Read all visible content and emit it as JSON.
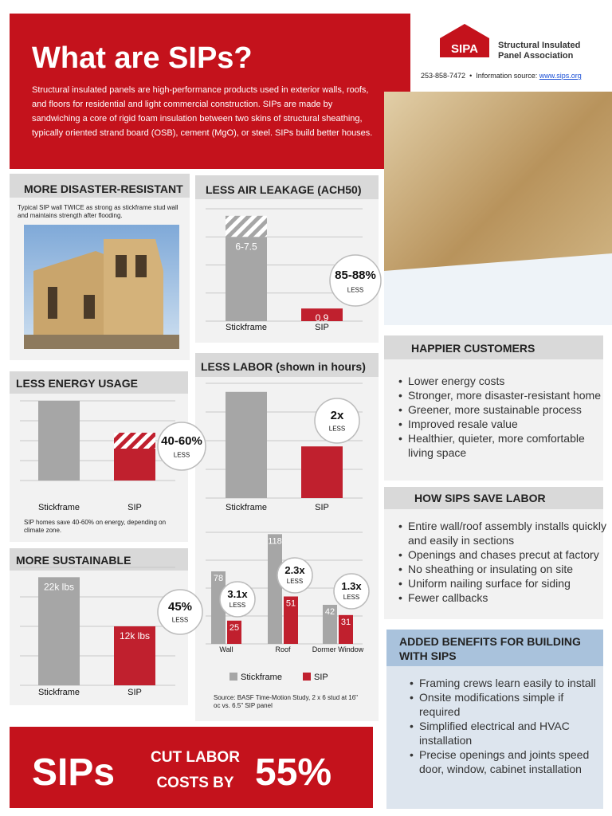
{
  "header": {
    "title": "What are SIPs?",
    "intro": "Structural insulated panels are high-performance products used in exterior walls, roofs, and floors for residential and light commercial construction. SIPs are made by sandwiching a core of rigid foam insulation between two skins of structural sheathing, typically oriented strand board (OSB), cement (MgO), or steel. SIPs build better houses."
  },
  "logo": {
    "mark": "SIPA",
    "name": "Structural Insulated Panel Association",
    "phone": "253-858-7472",
    "source_label": "Information source:",
    "source_link": "www.sips.org"
  },
  "disaster": {
    "title": "MORE DISASTER-RESISTANT",
    "text": "Typical SIP wall TWICE as strong as stickframe stud wall and maintains strength after flooding."
  },
  "customers": {
    "title": "HAPPIER CUSTOMERS",
    "items": [
      "Lower energy costs",
      "Stronger, more disaster-resistant home",
      "Greener, more sustainable process",
      "Improved resale value",
      "Healthier, quieter, more comfortable living space"
    ]
  },
  "labor": {
    "title": "HOW SIPS SAVE LABOR",
    "items": [
      "Entire wall/roof assembly installs quickly and easily in sections",
      "Openings and chases precut at factory",
      "No sheathing or insulating on site",
      "Uniform nailing surface for siding",
      "Fewer callbacks"
    ]
  },
  "benefits": {
    "title": "ADDED BENEFITS FOR BUILDING WITH SIPS",
    "items": [
      "Framing crews learn easily to install",
      "Onsite modifications simple if required",
      "Simplified electrical and HVAC installation",
      "Precise openings and joints speed door, window, cabinet installation"
    ]
  },
  "banner": {
    "brand": "SIPs",
    "line1": "CUT LABOR",
    "line2": "COSTS BY",
    "value": "55%"
  },
  "chart_data": [
    {
      "type": "bar",
      "title": "LESS AIR LEAKAGE (ACH50)",
      "categories": [
        "Stickframe",
        "SIP"
      ],
      "values": [
        6,
        0.9
      ],
      "range_high": [
        7.5,
        null
      ],
      "value_labels": [
        "6-7.5",
        "0.9"
      ],
      "colors": [
        "#a6a6a6",
        "#c0202e"
      ],
      "ylim": [
        0,
        8
      ],
      "yticks": [
        0,
        2,
        4,
        6,
        8
      ],
      "grid": true,
      "badge": {
        "value": "85-88%",
        "label": "LESS"
      }
    },
    {
      "type": "bar",
      "title": "LESS ENERGY USAGE",
      "categories": [
        "Stickframe",
        "SIP"
      ],
      "values": [
        100,
        40
      ],
      "range_high": [
        null,
        60
      ],
      "colors": [
        "#a6a6a6",
        "#c0202e"
      ],
      "ylim": [
        0,
        100
      ],
      "yticks": [
        0,
        25,
        50,
        75,
        100
      ],
      "grid": true,
      "badge": {
        "value": "40-60%",
        "label": "LESS"
      },
      "note": "SIP homes save 40-60% on energy, depending on climate zone."
    },
    {
      "type": "bar",
      "title": "LESS LABOR (shown in hours)",
      "categories": [
        "Stickframe",
        "SIP"
      ],
      "values": [
        259,
        126
      ],
      "colors": [
        "#a6a6a6",
        "#c0202e"
      ],
      "ylim": [
        0,
        280
      ],
      "yticks": [
        0,
        70,
        140,
        210,
        280
      ],
      "grid": true,
      "badge": {
        "value": "2x",
        "label": "LESS"
      }
    },
    {
      "type": "grouped-bar",
      "categories": [
        "Wall",
        "Roof",
        "Dormer Window"
      ],
      "series": [
        {
          "name": "Stickframe",
          "color": "#a6a6a6",
          "values": [
            78,
            118,
            42
          ]
        },
        {
          "name": "SIP",
          "color": "#c0202e",
          "values": [
            25,
            51,
            31
          ]
        }
      ],
      "ylim": [
        0,
        120
      ],
      "yticks": [
        0,
        30,
        60,
        90,
        120
      ],
      "grid": true,
      "badges": [
        {
          "value": "3.1x",
          "label": "LESS"
        },
        {
          "value": "2.3x",
          "label": "LESS"
        },
        {
          "value": "1.3x",
          "label": "LESS"
        }
      ],
      "source": "Source: BASF Time-Motion Study, 2 x 6 stud at 16\" oc vs. 6.5\" SIP panel"
    },
    {
      "type": "bar",
      "title": "MORE SUSTAINABLE",
      "categories": [
        "Stickframe",
        "SIP"
      ],
      "values": [
        22000,
        12000
      ],
      "value_labels": [
        "22k lbs",
        "12k lbs"
      ],
      "colors": [
        "#a6a6a6",
        "#c0202e"
      ],
      "ylim": [
        0,
        24000
      ],
      "yticks": [
        0,
        6000,
        12000,
        18000,
        24000
      ],
      "grid": true,
      "badge": {
        "value": "45%",
        "label": "LESS"
      }
    }
  ]
}
